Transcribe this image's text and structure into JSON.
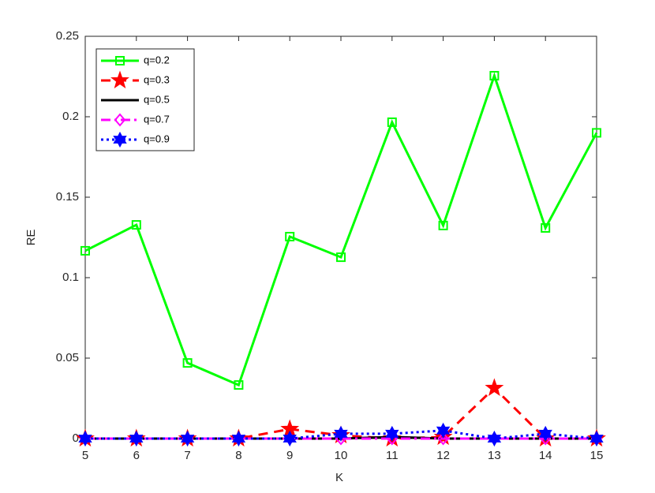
{
  "chart_data": {
    "type": "line",
    "x_label": "K",
    "y_label": "RE",
    "x": [
      5,
      6,
      7,
      8,
      9,
      10,
      11,
      12,
      13,
      14,
      15
    ],
    "xlim": [
      5,
      15
    ],
    "xticks": [
      5,
      6,
      7,
      8,
      9,
      10,
      11,
      12,
      13,
      14,
      15
    ],
    "ylim": [
      0,
      0.25
    ],
    "yticks": [
      0,
      0.05,
      0.1,
      0.15,
      0.2,
      0.25
    ],
    "grid": false,
    "legend": "upper-left",
    "series": [
      {
        "name": "q=0.2",
        "color": "#00ff00",
        "linestyle": "solid",
        "marker": "square",
        "values": [
          0.1167,
          0.1328,
          0.047,
          0.0333,
          0.1255,
          0.1127,
          0.1966,
          0.1324,
          0.2255,
          0.1309,
          0.19
        ]
      },
      {
        "name": "q=0.3",
        "color": "#ff0000",
        "linestyle": "dashed",
        "marker": "pentagram",
        "values": [
          0,
          0,
          0,
          0,
          0.0059,
          0.002,
          0,
          0.001,
          0.0314,
          0,
          0
        ]
      },
      {
        "name": "q=0.5",
        "color": "#000000",
        "linestyle": "solid",
        "marker": "none",
        "values": [
          0,
          0,
          0,
          0,
          0,
          0,
          0.001,
          0,
          0,
          0,
          0
        ]
      },
      {
        "name": "q=0.7",
        "color": "#ff00ff",
        "linestyle": "dashdot",
        "marker": "diamond",
        "values": [
          0,
          0,
          0,
          0,
          0,
          0,
          0,
          0,
          0,
          0,
          0
        ]
      },
      {
        "name": "q=0.9",
        "color": "#0000ff",
        "linestyle": "dotted",
        "marker": "hexagram",
        "values": [
          0,
          0,
          0,
          0,
          0,
          0.003,
          0.003,
          0.005,
          0,
          0.003,
          0
        ]
      }
    ]
  }
}
